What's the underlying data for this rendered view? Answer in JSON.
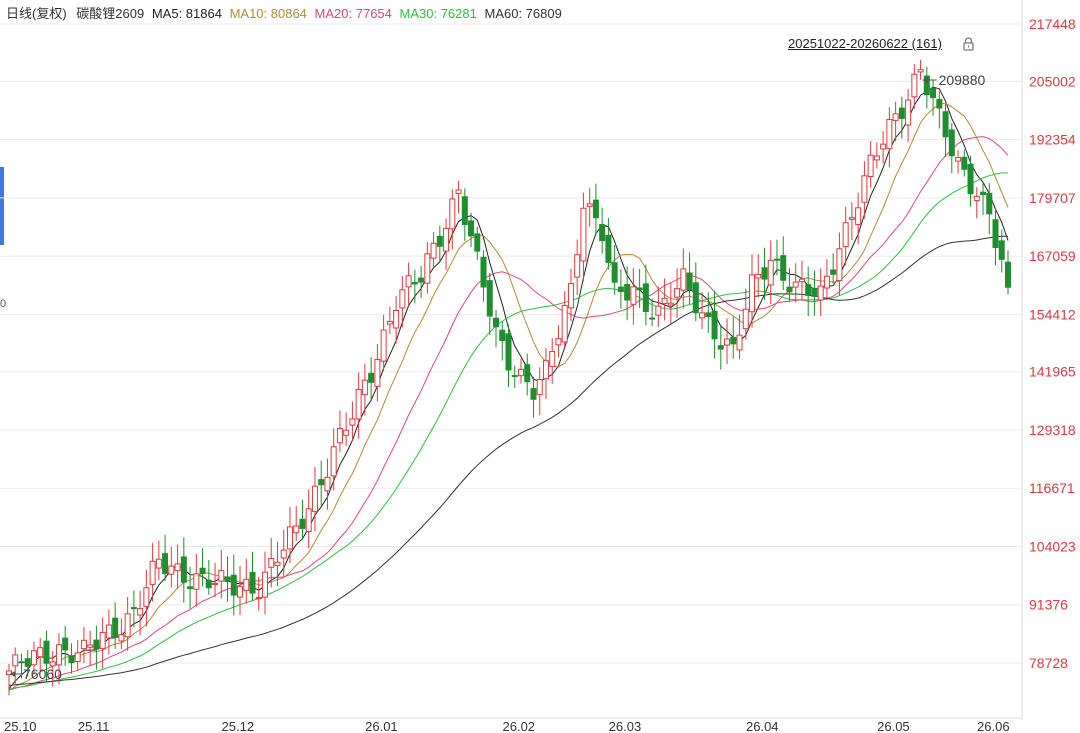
{
  "legend": {
    "title": "日线(复权)",
    "symbol": "碳酸锂2609",
    "ma5_label": "MA5: 81864",
    "ma10_label": "MA10: 80864",
    "ma20_label": "MA20: 77654",
    "ma30_label": "MA30: 76281",
    "ma60_label": "MA60: 76809"
  },
  "range_label": "20251022-20260622 (161)",
  "left_edge_label": "0",
  "colors": {
    "up": "#e0393e",
    "down": "#1e8e2e",
    "ma5": "#222222",
    "ma10": "#b08a3a",
    "ma20": "#e0457b",
    "ma30": "#2fbf3f",
    "ma60": "#333333"
  },
  "chart_data": {
    "type": "candlestick",
    "y_ticks": [
      "217448",
      "205002",
      "192354",
      "179707",
      "167059",
      "154412",
      "141965",
      "129318",
      "116671",
      "104023",
      "91376",
      "78728"
    ],
    "y_tick_values": [
      217448,
      205002,
      192354,
      179707,
      167059,
      154412,
      141965,
      129318,
      116671,
      104023,
      91376,
      78728
    ],
    "x_ticks": [
      "25.10",
      "25.11",
      "25.12",
      "26.01",
      "26.02",
      "26.03",
      "26.04",
      "26.05",
      "26.06"
    ],
    "x_tick_index": [
      0,
      12,
      35,
      58,
      80,
      97,
      119,
      140,
      156
    ],
    "annotations": {
      "high": "209880",
      "low": "76060"
    },
    "candle_count": 161
  }
}
